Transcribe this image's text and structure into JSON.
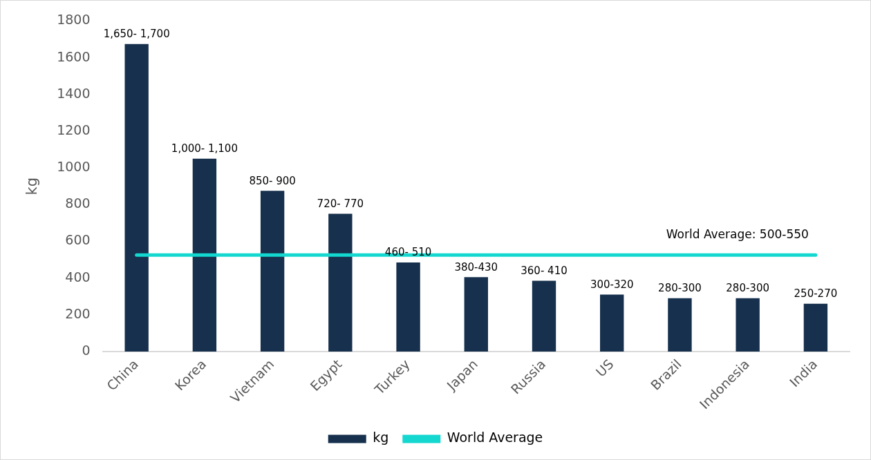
{
  "chart_data": {
    "type": "bar",
    "ylabel": "kg",
    "categories": [
      "China",
      "Korea",
      "Vietnam",
      "Egypt",
      "Turkey",
      "Japan",
      "Russia",
      "US",
      "Brazil",
      "Indonesia",
      "India"
    ],
    "series": [
      {
        "name": "kg",
        "color": "#16304d",
        "values": [
          1675,
          1050,
          875,
          750,
          485,
          405,
          385,
          310,
          290,
          290,
          260
        ],
        "value_labels": [
          "1,650- 1,700",
          "1,000- 1,100",
          "850- 900",
          "720- 770",
          "460- 510",
          "380-430",
          "360- 410",
          "300-320",
          "280-300",
          "280-300",
          "250-270"
        ]
      },
      {
        "name": "World Average",
        "type": "line",
        "color": "#14d8d0",
        "values": [
          525,
          525,
          525,
          525,
          525,
          525,
          525,
          525,
          525,
          525,
          525
        ]
      }
    ],
    "ylim": [
      0,
      1800
    ],
    "yticks": [
      0,
      200,
      400,
      600,
      800,
      1000,
      1200,
      1400,
      1600,
      1800
    ],
    "grid": false,
    "legend": "bottom",
    "marker": "none",
    "line_style": "solid",
    "annotations": [
      "World Average: 500-550"
    ]
  }
}
